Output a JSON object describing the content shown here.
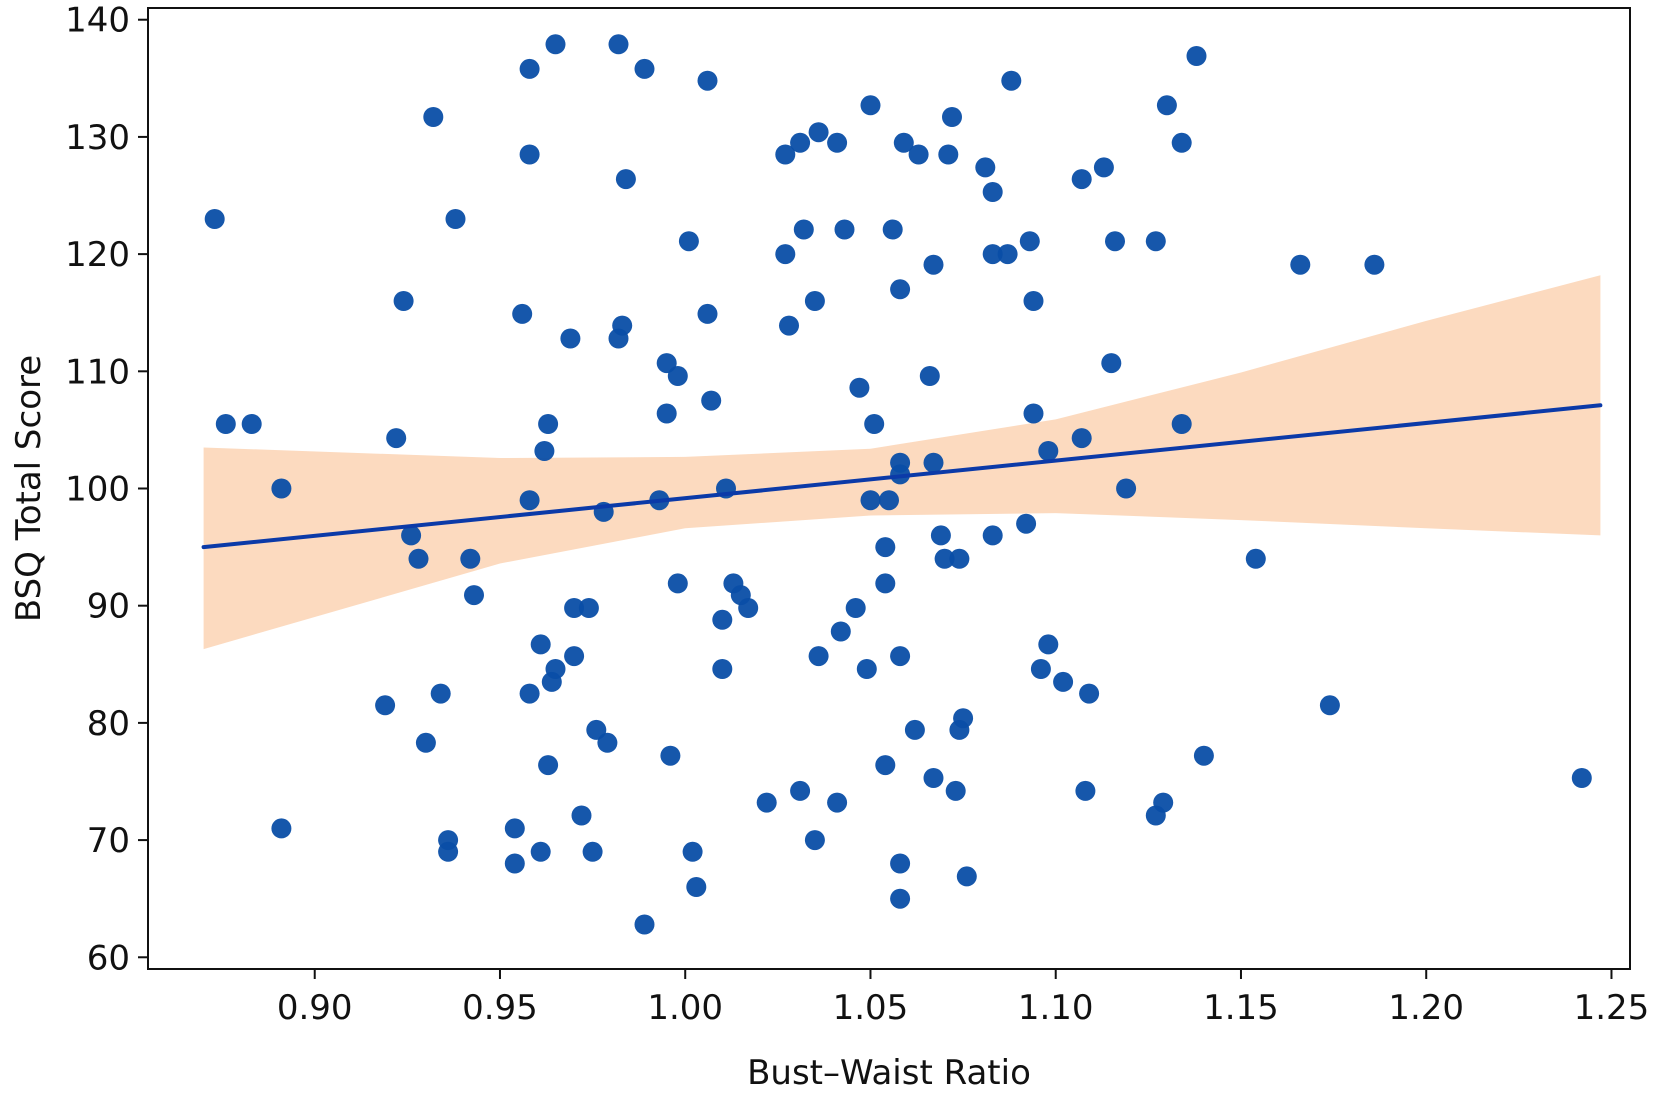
{
  "chart_data": {
    "type": "scatter",
    "title": "",
    "xlabel": "Bust–Waist Ratio",
    "ylabel": "BSQ Total Score",
    "xlim": [
      0.855,
      1.255
    ],
    "ylim": [
      59,
      141
    ],
    "xticks": [
      0.9,
      0.95,
      1.0,
      1.05,
      1.1,
      1.15,
      1.2,
      1.25
    ],
    "xtick_labels": [
      "0.90",
      "0.95",
      "1.00",
      "1.05",
      "1.10",
      "1.15",
      "1.20",
      "1.25"
    ],
    "yticks": [
      60,
      70,
      80,
      90,
      100,
      110,
      120,
      130,
      140
    ],
    "ytick_labels": [
      "60",
      "70",
      "80",
      "90",
      "100",
      "110",
      "120",
      "130",
      "140"
    ],
    "grid": false,
    "legend": "none",
    "colors": {
      "points": "#0a4ea6",
      "regression_line": "#0b3aa8",
      "confidence_band": "#fcd6b8"
    },
    "regression": {
      "x": [
        0.87,
        1.247
      ],
      "y": [
        95.0,
        107.1
      ],
      "ci_x": [
        0.87,
        0.95,
        1.0,
        1.05,
        1.1,
        1.15,
        1.2,
        1.247
      ],
      "ci_lower": [
        86.3,
        93.6,
        96.6,
        97.7,
        97.9,
        97.3,
        96.6,
        96.0
      ],
      "ci_upper": [
        103.5,
        102.6,
        102.7,
        103.4,
        105.9,
        109.9,
        114.3,
        118.2
      ]
    },
    "points": [
      [
        0.873,
        123
      ],
      [
        0.876,
        105.5
      ],
      [
        0.883,
        105.5
      ],
      [
        0.891,
        100
      ],
      [
        0.891,
        71
      ],
      [
        0.919,
        81.5
      ],
      [
        0.922,
        104.3
      ],
      [
        0.924,
        116
      ],
      [
        0.926,
        96
      ],
      [
        0.928,
        94
      ],
      [
        0.93,
        78.3
      ],
      [
        0.932,
        131.7
      ],
      [
        0.934,
        82.5
      ],
      [
        0.936,
        70
      ],
      [
        0.936,
        69
      ],
      [
        0.938,
        123
      ],
      [
        0.942,
        94
      ],
      [
        0.943,
        90.9
      ],
      [
        0.954,
        71
      ],
      [
        0.954,
        68
      ],
      [
        0.956,
        114.9
      ],
      [
        0.958,
        135.8
      ],
      [
        0.958,
        128.5
      ],
      [
        0.958,
        99
      ],
      [
        0.958,
        82.5
      ],
      [
        0.961,
        86.7
      ],
      [
        0.961,
        69
      ],
      [
        0.962,
        103.2
      ],
      [
        0.963,
        105.5
      ],
      [
        0.963,
        76.4
      ],
      [
        0.964,
        83.5
      ],
      [
        0.965,
        84.6
      ],
      [
        0.965,
        137.9
      ],
      [
        0.969,
        112.8
      ],
      [
        0.97,
        85.7
      ],
      [
        0.97,
        89.8
      ],
      [
        0.972,
        72.1
      ],
      [
        0.974,
        89.8
      ],
      [
        0.975,
        69
      ],
      [
        0.976,
        79.4
      ],
      [
        0.978,
        98
      ],
      [
        0.979,
        78.3
      ],
      [
        0.982,
        137.9
      ],
      [
        0.982,
        112.8
      ],
      [
        0.983,
        113.9
      ],
      [
        0.984,
        126.4
      ],
      [
        0.989,
        135.8
      ],
      [
        0.989,
        62.8
      ],
      [
        0.993,
        99
      ],
      [
        0.995,
        110.7
      ],
      [
        0.995,
        106.4
      ],
      [
        0.996,
        77.2
      ],
      [
        0.998,
        109.6
      ],
      [
        0.998,
        91.9
      ],
      [
        1.001,
        121.1
      ],
      [
        1.002,
        69
      ],
      [
        1.003,
        66
      ],
      [
        1.006,
        134.8
      ],
      [
        1.006,
        114.9
      ],
      [
        1.007,
        107.5
      ],
      [
        1.01,
        88.8
      ],
      [
        1.01,
        84.6
      ],
      [
        1.011,
        100
      ],
      [
        1.013,
        91.9
      ],
      [
        1.015,
        90.9
      ],
      [
        1.017,
        89.8
      ],
      [
        1.022,
        73.2
      ],
      [
        1.027,
        128.5
      ],
      [
        1.027,
        120
      ],
      [
        1.028,
        113.9
      ],
      [
        1.031,
        129.5
      ],
      [
        1.031,
        74.2
      ],
      [
        1.032,
        122.1
      ],
      [
        1.035,
        116
      ],
      [
        1.035,
        70
      ],
      [
        1.036,
        130.4
      ],
      [
        1.036,
        85.7
      ],
      [
        1.041,
        129.5
      ],
      [
        1.041,
        73.2
      ],
      [
        1.042,
        87.8
      ],
      [
        1.043,
        122.1
      ],
      [
        1.046,
        89.8
      ],
      [
        1.047,
        108.6
      ],
      [
        1.049,
        84.6
      ],
      [
        1.05,
        132.7
      ],
      [
        1.05,
        99
      ],
      [
        1.051,
        105.5
      ],
      [
        1.054,
        95
      ],
      [
        1.054,
        91.9
      ],
      [
        1.054,
        76.4
      ],
      [
        1.055,
        99
      ],
      [
        1.056,
        122.1
      ],
      [
        1.058,
        117
      ],
      [
        1.058,
        102.2
      ],
      [
        1.058,
        101.2
      ],
      [
        1.058,
        85.7
      ],
      [
        1.058,
        68
      ],
      [
        1.058,
        65
      ],
      [
        1.059,
        129.5
      ],
      [
        1.062,
        79.4
      ],
      [
        1.063,
        128.5
      ],
      [
        1.066,
        109.6
      ],
      [
        1.067,
        119.1
      ],
      [
        1.067,
        102.2
      ],
      [
        1.067,
        75.3
      ],
      [
        1.069,
        96
      ],
      [
        1.07,
        94
      ],
      [
        1.071,
        128.5
      ],
      [
        1.072,
        131.7
      ],
      [
        1.073,
        74.2
      ],
      [
        1.074,
        94
      ],
      [
        1.074,
        79.4
      ],
      [
        1.075,
        80.4
      ],
      [
        1.076,
        66.9
      ],
      [
        1.081,
        127.4
      ],
      [
        1.083,
        125.3
      ],
      [
        1.083,
        120
      ],
      [
        1.083,
        96
      ],
      [
        1.087,
        120
      ],
      [
        1.088,
        134.8
      ],
      [
        1.092,
        97
      ],
      [
        1.093,
        121.1
      ],
      [
        1.094,
        116
      ],
      [
        1.094,
        106.4
      ],
      [
        1.096,
        84.6
      ],
      [
        1.098,
        103.2
      ],
      [
        1.098,
        86.7
      ],
      [
        1.102,
        83.5
      ],
      [
        1.107,
        104.3
      ],
      [
        1.107,
        126.4
      ],
      [
        1.108,
        74.2
      ],
      [
        1.109,
        82.5
      ],
      [
        1.113,
        127.4
      ],
      [
        1.115,
        110.7
      ],
      [
        1.116,
        121.1
      ],
      [
        1.119,
        100
      ],
      [
        1.127,
        121.1
      ],
      [
        1.127,
        72.1
      ],
      [
        1.129,
        73.2
      ],
      [
        1.13,
        132.7
      ],
      [
        1.134,
        105.5
      ],
      [
        1.134,
        129.5
      ],
      [
        1.138,
        136.9
      ],
      [
        1.14,
        77.2
      ],
      [
        1.154,
        94
      ],
      [
        1.166,
        119.1
      ],
      [
        1.174,
        81.5
      ],
      [
        1.186,
        119.1
      ],
      [
        1.242,
        75.3
      ]
    ]
  }
}
